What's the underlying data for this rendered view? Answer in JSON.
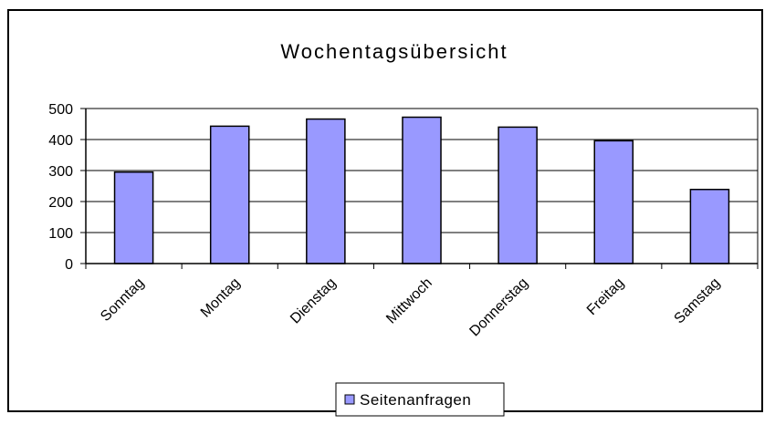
{
  "chart_data": {
    "type": "bar",
    "title": "Wochentagsübersicht",
    "categories": [
      "Sonntag",
      "Montag",
      "Dienstag",
      "Mittwoch",
      "Donnerstag",
      "Freitag",
      "Samstag"
    ],
    "series": [
      {
        "name": "Seitenanfragen",
        "values": [
          295,
          443,
          466,
          472,
          440,
          396,
          239
        ],
        "color": "#9999ff"
      }
    ],
    "xlabel": "",
    "ylabel": "",
    "ylim": [
      0,
      500
    ],
    "yticks": [
      0,
      100,
      200,
      300,
      400,
      500
    ],
    "grid": true,
    "legend": "bottom-center"
  }
}
